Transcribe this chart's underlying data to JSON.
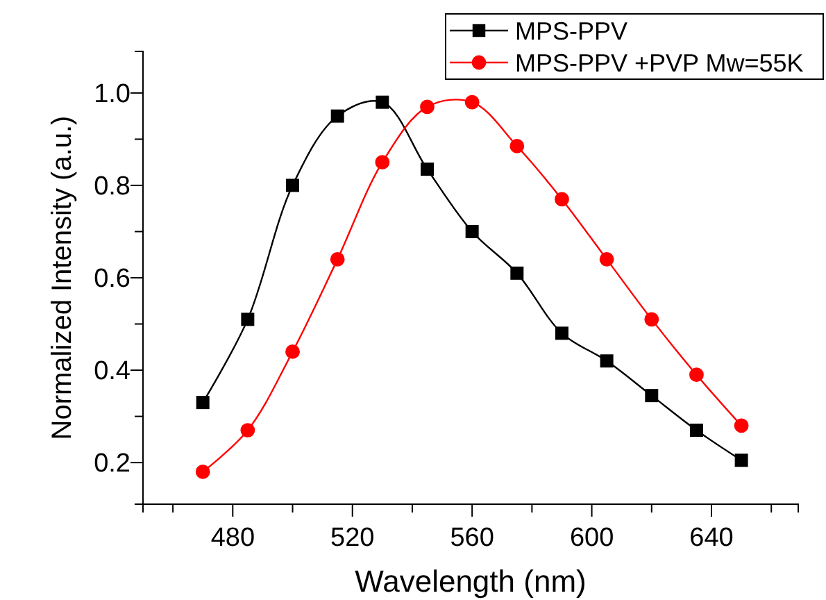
{
  "chart_data": {
    "type": "line",
    "xlabel": "Wavelength (nm)",
    "ylabel": "Normalized Intensity (a.u.)",
    "x": [
      470,
      485,
      500,
      515,
      530,
      545,
      560,
      575,
      590,
      605,
      620,
      635,
      650
    ],
    "series": [
      {
        "name": "MPS-PPV",
        "color": "#000000",
        "marker": "square",
        "values": [
          0.33,
          0.51,
          0.8,
          0.95,
          0.98,
          0.835,
          0.7,
          0.61,
          0.48,
          0.42,
          0.345,
          0.27,
          0.205
        ]
      },
      {
        "name": "MPS-PPV +PVP Mw=55K",
        "color": "#ff0000",
        "marker": "circle",
        "values": [
          0.18,
          0.27,
          0.44,
          0.64,
          0.85,
          0.97,
          0.98,
          0.885,
          0.77,
          0.64,
          0.51,
          0.39,
          0.28
        ]
      }
    ],
    "xlim": [
      450,
      669
    ],
    "xticks": [
      {
        "value": 460,
        "label": null
      },
      480,
      {
        "value": 500,
        "label": null
      },
      520,
      {
        "value": 540,
        "label": null
      },
      560,
      {
        "value": 580,
        "label": null
      },
      600,
      {
        "value": 620,
        "label": null
      },
      640,
      {
        "value": 660,
        "label": null
      }
    ],
    "ylim": [
      0.11,
      1.09
    ],
    "yticks": [
      {
        "value": 0.2,
        "label": "0.2"
      },
      {
        "value": 0.3,
        "label": null
      },
      {
        "value": 0.4,
        "label": "0.4"
      },
      {
        "value": 0.5,
        "label": null
      },
      {
        "value": 0.6,
        "label": "0.6"
      },
      {
        "value": 0.7,
        "label": null
      },
      {
        "value": 0.8,
        "label": "0.8"
      },
      {
        "value": 0.9,
        "label": null
      },
      {
        "value": 1.0,
        "label": "1.0"
      }
    ],
    "grid": false,
    "legend": "top right",
    "line_style": "solid"
  }
}
